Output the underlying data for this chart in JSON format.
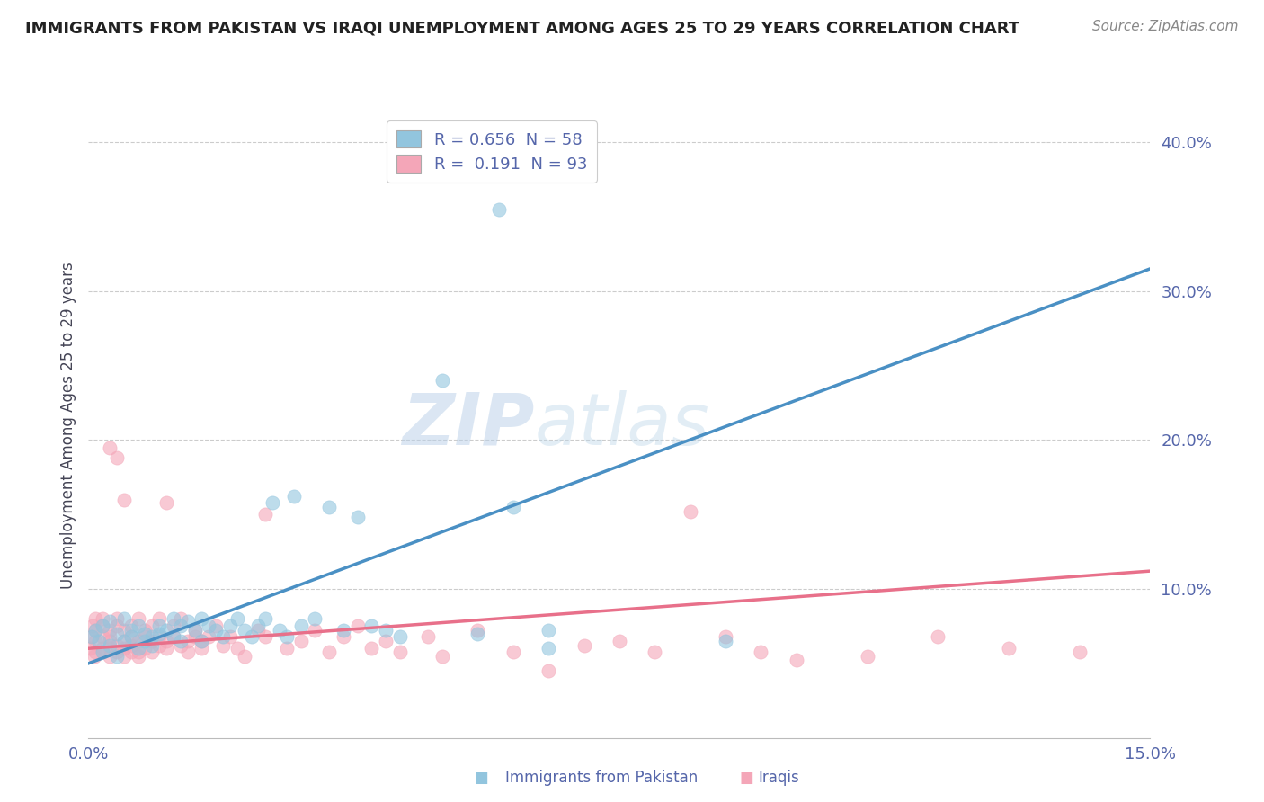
{
  "title": "IMMIGRANTS FROM PAKISTAN VS IRAQI UNEMPLOYMENT AMONG AGES 25 TO 29 YEARS CORRELATION CHART",
  "source": "Source: ZipAtlas.com",
  "ylabel": "Unemployment Among Ages 25 to 29 years",
  "xlim": [
    0,
    0.15
  ],
  "ylim": [
    0.0,
    0.42
  ],
  "ytick_positions": [
    0.1,
    0.2,
    0.3,
    0.4
  ],
  "ytick_labels": [
    "10.0%",
    "20.0%",
    "30.0%",
    "40.0%"
  ],
  "blue_R": 0.656,
  "blue_N": 58,
  "pink_R": 0.191,
  "pink_N": 93,
  "blue_color": "#92c5de",
  "pink_color": "#f4a6b8",
  "blue_line_color": "#4a90c4",
  "pink_line_color": "#e8708a",
  "legend_label_blue": "Immigrants from Pakistan",
  "legend_label_pink": "Iraqis",
  "watermark_zip": "ZIP",
  "watermark_atlas": "atlas",
  "background_color": "#ffffff",
  "grid_color": "#cccccc",
  "title_color": "#222222",
  "axis_label_color": "#5566aa",
  "blue_scatter": [
    [
      0.0005,
      0.068
    ],
    [
      0.001,
      0.072
    ],
    [
      0.0015,
      0.065
    ],
    [
      0.002,
      0.058
    ],
    [
      0.002,
      0.075
    ],
    [
      0.003,
      0.062
    ],
    [
      0.003,
      0.078
    ],
    [
      0.004,
      0.07
    ],
    [
      0.004,
      0.055
    ],
    [
      0.005,
      0.065
    ],
    [
      0.005,
      0.08
    ],
    [
      0.006,
      0.068
    ],
    [
      0.006,
      0.072
    ],
    [
      0.007,
      0.06
    ],
    [
      0.007,
      0.075
    ],
    [
      0.008,
      0.065
    ],
    [
      0.008,
      0.07
    ],
    [
      0.009,
      0.068
    ],
    [
      0.009,
      0.062
    ],
    [
      0.01,
      0.07
    ],
    [
      0.01,
      0.075
    ],
    [
      0.011,
      0.072
    ],
    [
      0.012,
      0.068
    ],
    [
      0.012,
      0.08
    ],
    [
      0.013,
      0.075
    ],
    [
      0.013,
      0.065
    ],
    [
      0.014,
      0.078
    ],
    [
      0.015,
      0.072
    ],
    [
      0.016,
      0.08
    ],
    [
      0.016,
      0.065
    ],
    [
      0.017,
      0.075
    ],
    [
      0.018,
      0.072
    ],
    [
      0.019,
      0.068
    ],
    [
      0.02,
      0.075
    ],
    [
      0.021,
      0.08
    ],
    [
      0.022,
      0.072
    ],
    [
      0.023,
      0.068
    ],
    [
      0.024,
      0.075
    ],
    [
      0.025,
      0.08
    ],
    [
      0.026,
      0.158
    ],
    [
      0.027,
      0.072
    ],
    [
      0.028,
      0.068
    ],
    [
      0.029,
      0.162
    ],
    [
      0.03,
      0.075
    ],
    [
      0.032,
      0.08
    ],
    [
      0.034,
      0.155
    ],
    [
      0.036,
      0.072
    ],
    [
      0.038,
      0.148
    ],
    [
      0.04,
      0.075
    ],
    [
      0.042,
      0.072
    ],
    [
      0.044,
      0.068
    ],
    [
      0.05,
      0.24
    ],
    [
      0.055,
      0.07
    ],
    [
      0.06,
      0.155
    ],
    [
      0.065,
      0.072
    ],
    [
      0.058,
      0.355
    ],
    [
      0.09,
      0.065
    ],
    [
      0.065,
      0.06
    ]
  ],
  "pink_scatter": [
    [
      0.0002,
      0.06
    ],
    [
      0.0004,
      0.068
    ],
    [
      0.0006,
      0.075
    ],
    [
      0.0008,
      0.055
    ],
    [
      0.001,
      0.065
    ],
    [
      0.001,
      0.08
    ],
    [
      0.001,
      0.058
    ],
    [
      0.001,
      0.072
    ],
    [
      0.002,
      0.068
    ],
    [
      0.002,
      0.06
    ],
    [
      0.002,
      0.075
    ],
    [
      0.002,
      0.058
    ],
    [
      0.002,
      0.08
    ],
    [
      0.003,
      0.065
    ],
    [
      0.003,
      0.072
    ],
    [
      0.003,
      0.055
    ],
    [
      0.003,
      0.06
    ],
    [
      0.003,
      0.195
    ],
    [
      0.003,
      0.068
    ],
    [
      0.004,
      0.075
    ],
    [
      0.004,
      0.062
    ],
    [
      0.004,
      0.058
    ],
    [
      0.004,
      0.08
    ],
    [
      0.004,
      0.188
    ],
    [
      0.005,
      0.065
    ],
    [
      0.005,
      0.072
    ],
    [
      0.005,
      0.055
    ],
    [
      0.005,
      0.16
    ],
    [
      0.005,
      0.06
    ],
    [
      0.006,
      0.068
    ],
    [
      0.006,
      0.075
    ],
    [
      0.006,
      0.058
    ],
    [
      0.006,
      0.062
    ],
    [
      0.007,
      0.065
    ],
    [
      0.007,
      0.08
    ],
    [
      0.007,
      0.058
    ],
    [
      0.007,
      0.055
    ],
    [
      0.008,
      0.068
    ],
    [
      0.008,
      0.072
    ],
    [
      0.008,
      0.06
    ],
    [
      0.009,
      0.065
    ],
    [
      0.009,
      0.075
    ],
    [
      0.009,
      0.058
    ],
    [
      0.01,
      0.068
    ],
    [
      0.01,
      0.062
    ],
    [
      0.01,
      0.08
    ],
    [
      0.011,
      0.065
    ],
    [
      0.011,
      0.158
    ],
    [
      0.011,
      0.06
    ],
    [
      0.012,
      0.068
    ],
    [
      0.012,
      0.075
    ],
    [
      0.013,
      0.062
    ],
    [
      0.013,
      0.08
    ],
    [
      0.014,
      0.065
    ],
    [
      0.014,
      0.058
    ],
    [
      0.015,
      0.068
    ],
    [
      0.015,
      0.072
    ],
    [
      0.016,
      0.065
    ],
    [
      0.016,
      0.06
    ],
    [
      0.017,
      0.068
    ],
    [
      0.018,
      0.075
    ],
    [
      0.019,
      0.062
    ],
    [
      0.02,
      0.068
    ],
    [
      0.021,
      0.06
    ],
    [
      0.022,
      0.055
    ],
    [
      0.024,
      0.072
    ],
    [
      0.025,
      0.15
    ],
    [
      0.025,
      0.068
    ],
    [
      0.028,
      0.06
    ],
    [
      0.03,
      0.065
    ],
    [
      0.032,
      0.072
    ],
    [
      0.034,
      0.058
    ],
    [
      0.036,
      0.068
    ],
    [
      0.038,
      0.075
    ],
    [
      0.04,
      0.06
    ],
    [
      0.042,
      0.065
    ],
    [
      0.044,
      0.058
    ],
    [
      0.048,
      0.068
    ],
    [
      0.05,
      0.055
    ],
    [
      0.055,
      0.072
    ],
    [
      0.06,
      0.058
    ],
    [
      0.065,
      0.045
    ],
    [
      0.07,
      0.062
    ],
    [
      0.075,
      0.065
    ],
    [
      0.08,
      0.058
    ],
    [
      0.085,
      0.152
    ],
    [
      0.09,
      0.068
    ],
    [
      0.095,
      0.058
    ],
    [
      0.1,
      0.052
    ],
    [
      0.11,
      0.055
    ],
    [
      0.12,
      0.068
    ],
    [
      0.13,
      0.06
    ],
    [
      0.14,
      0.058
    ]
  ],
  "blue_line_x": [
    0.0,
    0.15
  ],
  "blue_line_y": [
    0.05,
    0.315
  ],
  "pink_line_x": [
    0.0,
    0.15
  ],
  "pink_line_y": [
    0.06,
    0.112
  ]
}
